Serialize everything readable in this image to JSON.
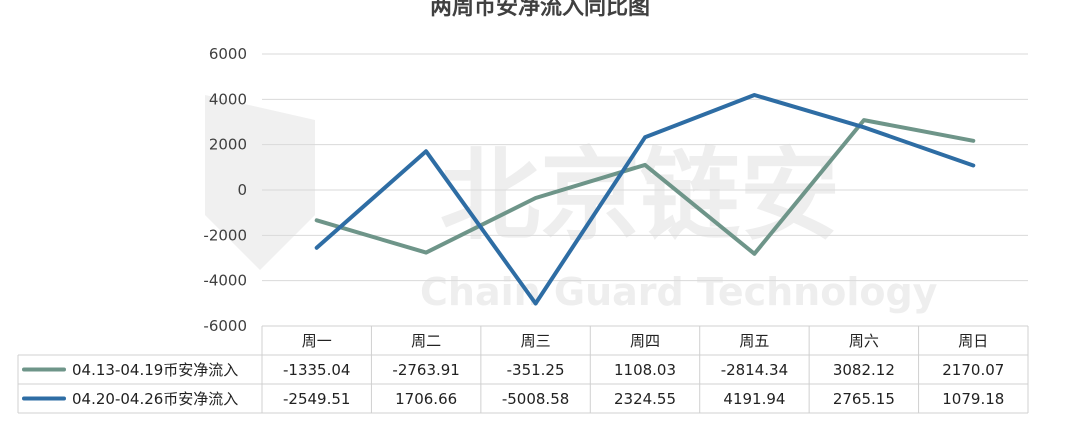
{
  "chart_data": {
    "type": "line",
    "title": "两周币安净流入同比图",
    "categories": [
      "周一",
      "周二",
      "周三",
      "周四",
      "周五",
      "周六",
      "周日"
    ],
    "ylim": [
      -6000,
      6000
    ],
    "yticks": [
      6000,
      4000,
      2000,
      0,
      -2000,
      -4000,
      -6000
    ],
    "grid": true,
    "legend": "bottom-table",
    "series": [
      {
        "name": "04.13-04.19币安净流入",
        "color": "#6e9589",
        "values": [
          -1335.04,
          -2763.91,
          -351.25,
          1108.03,
          -2814.34,
          3082.12,
          2170.07
        ],
        "labels": [
          "-1335.04",
          "-2763.91",
          "-351.25",
          "1108.03",
          "-2814.34",
          "3082.12",
          "2170.07"
        ]
      },
      {
        "name": "04.20-04.26币安净流入",
        "color": "#2e6da4",
        "values": [
          -2549.51,
          1706.66,
          -5008.58,
          2324.55,
          4191.94,
          2765.15,
          1079.18
        ],
        "labels": [
          "-2549.51",
          "1706.66",
          "-5008.58",
          "2324.55",
          "4191.94",
          "2765.15",
          "1079.18"
        ]
      }
    ]
  },
  "watermark": {
    "main": "北京链安",
    "sub": "Chain Guard Technology"
  }
}
